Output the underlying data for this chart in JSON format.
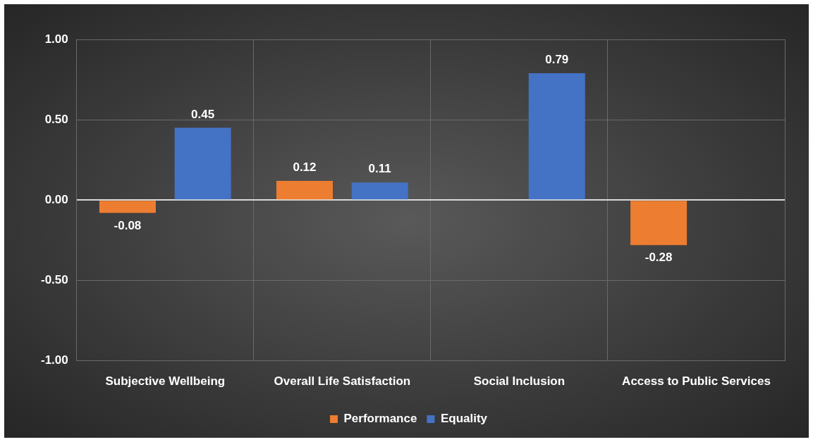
{
  "chart_data": {
    "type": "bar",
    "categories": [
      "Subjective Wellbeing",
      "Overall Life Satisfaction",
      "Social Inclusion",
      "Access to Public Services"
    ],
    "series": [
      {
        "name": "Performance",
        "color": "#ed7d31",
        "values": [
          -0.08,
          0.12,
          null,
          -0.28
        ]
      },
      {
        "name": "Equality",
        "color": "#4472c4",
        "values": [
          0.45,
          0.11,
          0.79,
          null
        ]
      }
    ],
    "ylim": [
      -1,
      1
    ],
    "yticks": [
      {
        "value": -1,
        "label": "-1.00"
      },
      {
        "value": -0.5,
        "label": "-0.50"
      },
      {
        "value": 0,
        "label": "0.00"
      },
      {
        "value": 0.5,
        "label": "0.50"
      },
      {
        "value": 1,
        "label": "1.00"
      }
    ],
    "grid": true,
    "legend": "bottom",
    "data_labels": true
  }
}
